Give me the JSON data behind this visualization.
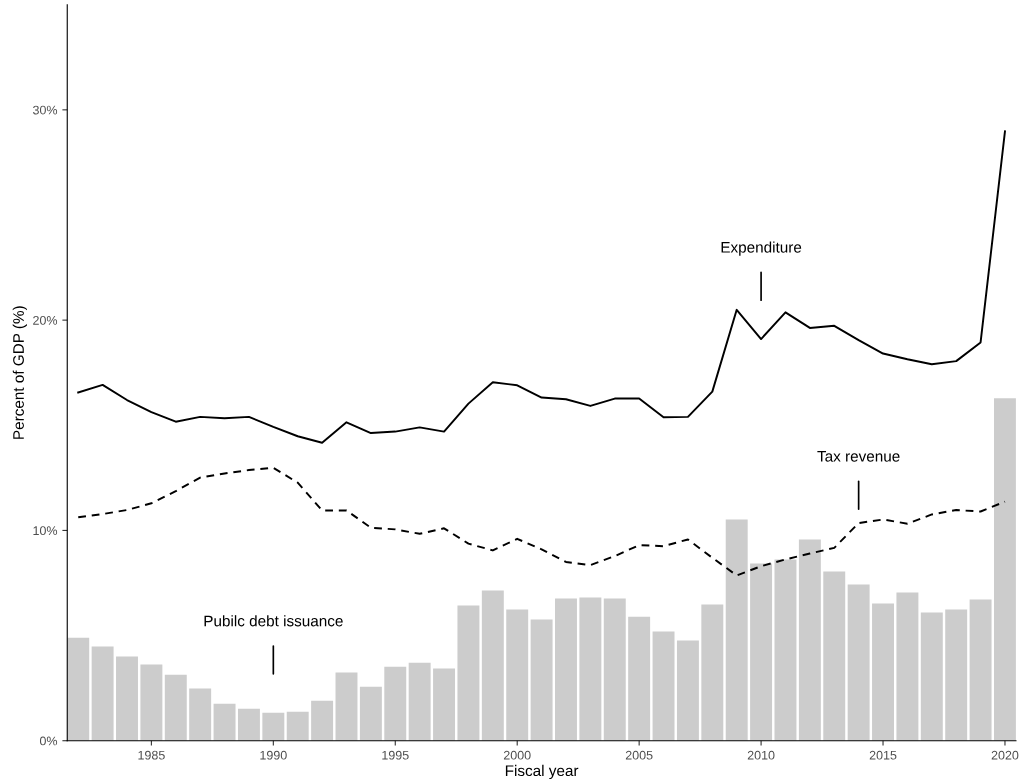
{
  "chart_data": {
    "type": "bar",
    "xlabel": "Fiscal year",
    "ylabel": "Percent of GDP (%)",
    "x": [
      1982,
      1983,
      1984,
      1985,
      1986,
      1987,
      1988,
      1989,
      1990,
      1991,
      1992,
      1993,
      1994,
      1995,
      1996,
      1997,
      1998,
      1999,
      2000,
      2001,
      2002,
      2003,
      2004,
      2005,
      2006,
      2007,
      2008,
      2009,
      2010,
      2011,
      2012,
      2013,
      2014,
      2015,
      2016,
      2017,
      2018,
      2019,
      2020
    ],
    "series": [
      {
        "color": "#cccccc",
        "values": [
          4.9,
          4.48,
          4.0,
          3.62,
          3.14,
          2.48,
          1.76,
          1.52,
          1.33,
          1.38,
          1.9,
          3.24,
          2.57,
          3.52,
          3.71,
          3.43,
          6.43,
          7.14,
          6.24,
          5.76,
          6.76,
          6.81,
          6.76,
          5.9,
          5.19,
          4.76,
          6.48,
          10.52,
          8.43,
          8.62,
          9.57,
          8.05,
          7.43,
          6.52,
          7.05,
          6.1,
          6.24,
          6.71,
          16.29
        ]
      },
      {
        "type": "line",
        "color": "#000000",
        "line_style": "solid",
        "values": [
          16.56,
          16.92,
          16.2,
          15.63,
          15.17,
          15.4,
          15.33,
          15.4,
          14.92,
          14.48,
          14.17,
          15.14,
          14.63,
          14.7,
          14.9,
          14.7,
          16.03,
          17.05,
          16.9,
          16.32,
          16.24,
          15.92,
          16.27,
          16.27,
          15.38,
          15.4,
          16.6,
          20.49,
          19.1,
          20.37,
          19.63,
          19.73,
          19.05,
          18.41,
          18.14,
          17.9,
          18.05,
          18.94,
          28.98
        ]
      },
      {
        "type": "line",
        "color": "#000000",
        "line_style": "dashed",
        "values": [
          10.63,
          10.78,
          10.97,
          11.29,
          11.87,
          12.51,
          12.71,
          12.87,
          12.98,
          12.27,
          10.95,
          10.95,
          10.13,
          10.05,
          9.84,
          10.1,
          9.37,
          9.05,
          9.6,
          9.1,
          8.5,
          8.35,
          8.78,
          9.3,
          9.25,
          9.57,
          8.7,
          7.86,
          8.3,
          8.62,
          8.9,
          9.17,
          10.35,
          10.52,
          10.32,
          10.76,
          10.97,
          10.9,
          11.37
        ]
      }
    ],
    "annotations": [
      "Pubilc debt issuance",
      "Expenditure",
      "Tax revenue"
    ],
    "xlim": [
      1981.55,
      2020.45
    ],
    "xticks": [
      1985,
      1990,
      1995,
      2000,
      2005,
      2010,
      2015,
      2020
    ],
    "ylim": [
      0,
      35
    ],
    "yticks": [
      {
        "value": 0,
        "label": "0%"
      },
      {
        "value": 10,
        "label": "10%"
      },
      {
        "value": 20,
        "label": "20%"
      },
      {
        "value": 30,
        "label": "30%"
      }
    ],
    "grid": false,
    "legend": false
  }
}
